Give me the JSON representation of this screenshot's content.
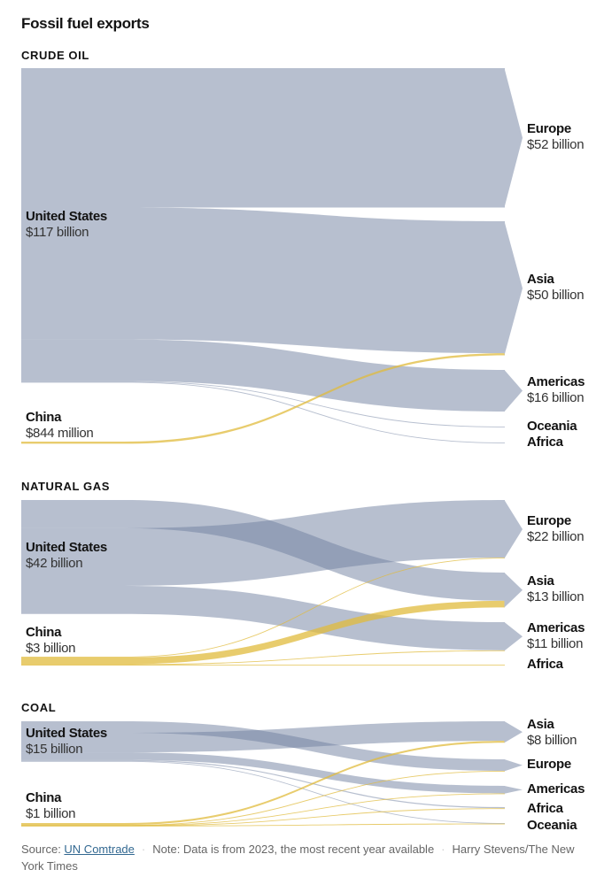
{
  "title": "Fossil fuel exports",
  "colors": {
    "united_states": "#6f7fa0",
    "china": "#e0bb3c",
    "node_arrow": "#b7bfcf",
    "link": "#326891"
  },
  "chart_data": {
    "type": "sankey",
    "title": "Fossil fuel exports",
    "sections": [
      {
        "title": "CRUDE OIL",
        "sources": [
          {
            "name": "United States",
            "value": "$117 billion"
          },
          {
            "name": "China",
            "value": "$844 million"
          }
        ],
        "targets": [
          {
            "name": "Europe",
            "value": "$52 billion"
          },
          {
            "name": "Asia",
            "value": "$50 billion"
          },
          {
            "name": "Americas",
            "value": "$16 billion"
          },
          {
            "name": "Oceania",
            "value": ""
          },
          {
            "name": "Africa",
            "value": ""
          }
        ],
        "flows": [
          {
            "from": "United States",
            "to": "Europe",
            "value": 52
          },
          {
            "from": "United States",
            "to": "Asia",
            "value": 49.2
          },
          {
            "from": "United States",
            "to": "Americas",
            "value": 15.5
          },
          {
            "from": "United States",
            "to": "Oceania",
            "value": 0.3
          },
          {
            "from": "United States",
            "to": "Africa",
            "value": 0.1
          },
          {
            "from": "China",
            "to": "Asia",
            "value": 0.8
          }
        ]
      },
      {
        "title": "NATURAL GAS",
        "sources": [
          {
            "name": "United States",
            "value": "$42 billion"
          },
          {
            "name": "China",
            "value": "$3 billion"
          }
        ],
        "targets": [
          {
            "name": "Europe",
            "value": "$22 billion"
          },
          {
            "name": "Asia",
            "value": "$13 billion"
          },
          {
            "name": "Americas",
            "value": "$11 billion"
          },
          {
            "name": "Africa",
            "value": ""
          }
        ],
        "flows": [
          {
            "from": "United States",
            "to": "Asia",
            "value": 10.5
          },
          {
            "from": "United States",
            "to": "Europe",
            "value": 21.5
          },
          {
            "from": "United States",
            "to": "Americas",
            "value": 10.5
          },
          {
            "from": "China",
            "to": "Europe",
            "value": 0.3
          },
          {
            "from": "China",
            "to": "Asia",
            "value": 2.5
          },
          {
            "from": "China",
            "to": "Americas",
            "value": 0.2
          },
          {
            "from": "China",
            "to": "Africa",
            "value": 0.1
          }
        ]
      },
      {
        "title": "COAL",
        "sources": [
          {
            "name": "United States",
            "value": "$15 billion"
          },
          {
            "name": "China",
            "value": "$1 billion"
          }
        ],
        "targets": [
          {
            "name": "Asia",
            "value": "$8 billion"
          },
          {
            "name": "Europe",
            "value": ""
          },
          {
            "name": "Americas",
            "value": ""
          },
          {
            "name": "Africa",
            "value": ""
          },
          {
            "name": "Oceania",
            "value": ""
          }
        ],
        "flows": [
          {
            "from": "United States",
            "to": "Europe",
            "value": 4.3
          },
          {
            "from": "United States",
            "to": "Asia",
            "value": 7.3
          },
          {
            "from": "United States",
            "to": "Americas",
            "value": 2.8
          },
          {
            "from": "United States",
            "to": "Africa",
            "value": 0.4
          },
          {
            "from": "United States",
            "to": "Oceania",
            "value": 0.2
          },
          {
            "from": "China",
            "to": "Asia",
            "value": 0.7
          },
          {
            "from": "China",
            "to": "Europe",
            "value": 0.1
          },
          {
            "from": "China",
            "to": "Americas",
            "value": 0.1
          },
          {
            "from": "China",
            "to": "Africa",
            "value": 0.05
          },
          {
            "from": "China",
            "to": "Oceania",
            "value": 0.05
          }
        ]
      }
    ]
  },
  "footer": {
    "source_prefix": "Source: ",
    "source_link": "UN Comtrade",
    "separator": "·",
    "note": "Note: Data is from 2023, the most recent year available",
    "credit": "Harry Stevens/The New York Times"
  }
}
